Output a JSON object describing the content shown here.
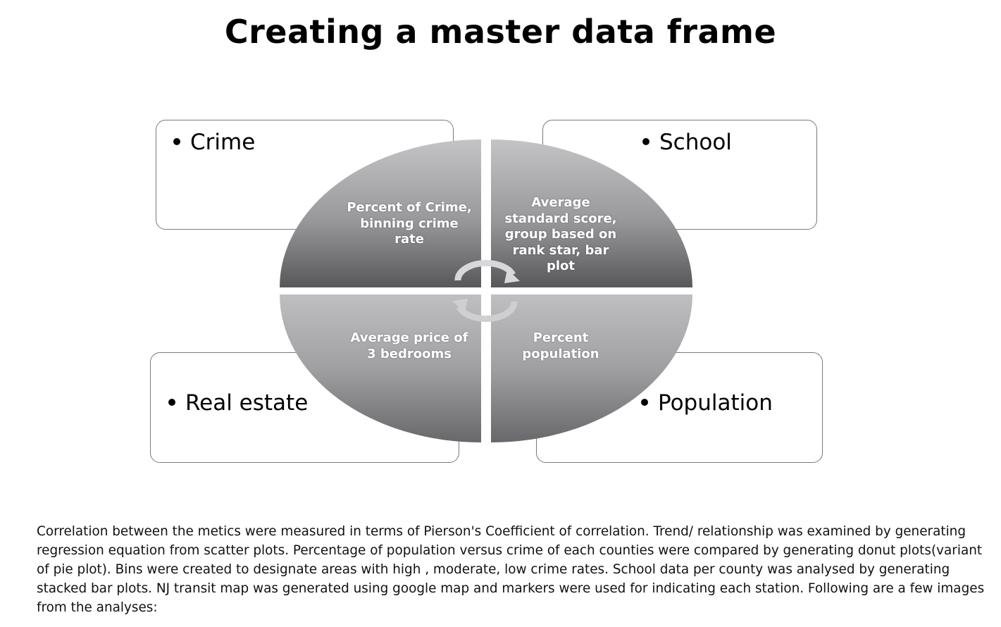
{
  "title": "Creating a master data frame",
  "boxes": {
    "crime": "Crime",
    "school": "School",
    "real_estate": "Real estate",
    "population": "Population"
  },
  "quadrants": {
    "top_left": "Percent of Crime, binning crime rate",
    "top_right": "Average standard score, group based on rank star, bar plot",
    "bottom_left": "Average price of 3 bedrooms",
    "bottom_right": "Percent population"
  },
  "paragraph": "Correlation between the metics were measured in terms of Pierson's Coefficient of correlation. Trend/ relationship was examined by generating regression equation from scatter plots. Percentage of population versus crime of each counties were compared by generating donut plots(variant of pie plot). Bins were created to designate areas with high , moderate, low crime rates. School data per county was analysed by generating stacked bar plots. NJ transit map was generated using google map and markers were used for indicating each station. Following are a few images from the analyses:"
}
